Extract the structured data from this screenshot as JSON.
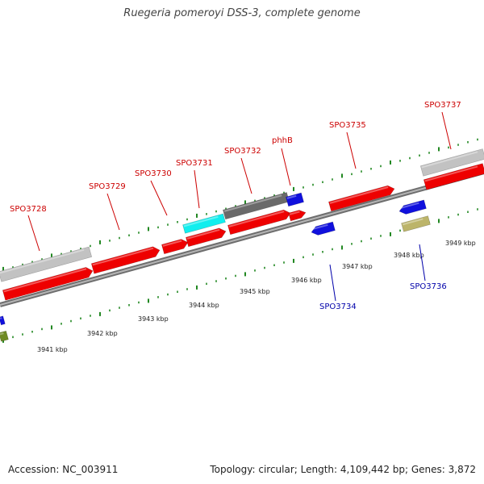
{
  "title": "Ruegeria pomeroyi DSS-3, complete genome",
  "footer": {
    "accession": "Accession: NC_003911",
    "summary": "Topology: circular; Length: 4,109,442 bp; Genes: 3,872"
  },
  "colors": {
    "gene_red": "#ee0000",
    "gene_blue": "#1010dd",
    "gene_grey_light": "#c2c2c2",
    "gene_grey_dark": "#6a6a6a",
    "gene_cyan": "#11eeee",
    "gene_khaki": "#bcb46a",
    "gene_olive": "#6f8a25",
    "label_forward": "#cc0000",
    "label_reverse": "#0000aa",
    "ticks": "#228822",
    "backbone": "#888888"
  },
  "ticks": {
    "labels": [
      "3941 kbp",
      "3942 kbp",
      "3943 kbp",
      "3944 kbp",
      "3945 kbp",
      "3946 kbp",
      "3947 kbp",
      "3948 kbp",
      "3949 kbp"
    ]
  },
  "labels": {
    "forward": [
      "SPO3728",
      "SPO3729",
      "SPO3730",
      "SPO3731",
      "SPO3732",
      "phhB",
      "SPO3735",
      "SPO3737"
    ],
    "reverse": [
      "SPO3734",
      "SPO3736"
    ]
  }
}
